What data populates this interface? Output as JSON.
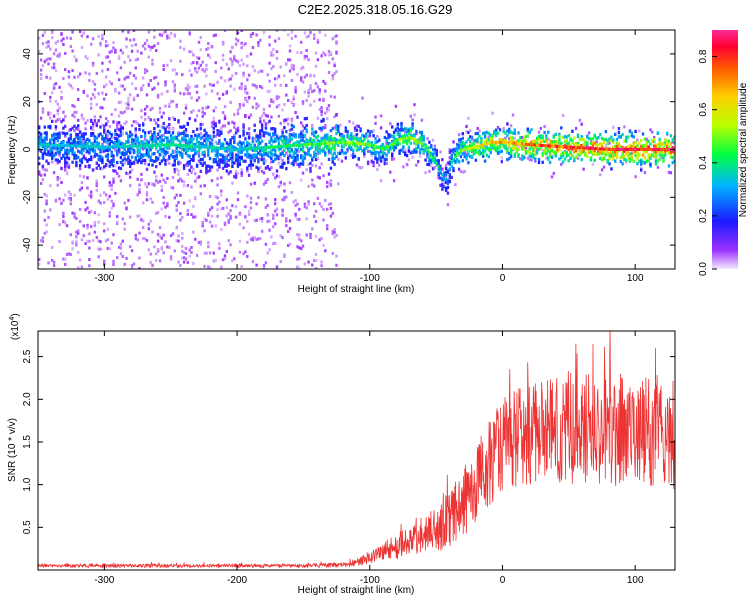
{
  "title": "C2E2.2025.318.05.16.G29",
  "chart_data": [
    {
      "type": "heatmap",
      "xlabel": "Height of straight line (km)",
      "ylabel": "Frequency (Hz)",
      "xlim": [
        -350,
        130
      ],
      "ylim": [
        -50,
        50
      ],
      "x_ticks": [
        -300,
        -200,
        -100,
        0,
        100
      ],
      "y_ticks": [
        -40,
        -20,
        0,
        20,
        40
      ],
      "x_tick_labels": [
        "-300",
        "-200",
        "-100",
        "0",
        "100"
      ],
      "y_tick_labels": [
        "-40",
        "-20",
        "0",
        "20",
        "40"
      ],
      "colorbar": {
        "label": "Normalized spectral amplitude",
        "range": [
          0,
          0.9
        ],
        "ticks": [
          0,
          0.2,
          0.4,
          0.6,
          0.8
        ],
        "tick_labels": [
          "0.0",
          "0.2",
          "0.4",
          "0.6",
          "0.8"
        ]
      },
      "ridge": {
        "x": [
          -350,
          -300,
          -250,
          -200,
          -150,
          -120,
          -100,
          -90,
          -80,
          -70,
          -60,
          -55,
          -50,
          -45,
          -42,
          -40,
          -35,
          -30,
          -20,
          -10,
          0,
          20,
          50,
          80,
          100,
          130
        ],
        "freq": [
          2,
          1,
          2,
          0,
          2,
          3,
          2,
          0,
          4,
          5,
          2,
          -2,
          -6,
          -12,
          -13,
          -6,
          -2,
          0,
          1,
          3,
          3,
          2,
          1,
          0,
          0,
          0
        ],
        "amplitude": [
          0.35,
          0.35,
          0.4,
          0.35,
          0.45,
          0.5,
          0.5,
          0.45,
          0.5,
          0.55,
          0.5,
          0.45,
          0.4,
          0.35,
          0.3,
          0.35,
          0.45,
          0.5,
          0.6,
          0.65,
          0.7,
          0.75,
          0.8,
          0.85,
          0.85,
          0.85
        ]
      }
    },
    {
      "type": "line",
      "xlabel": "Height of straight line (km)",
      "ylabel": "SNR (10 * v/v)",
      "y_multiplier": "(x10^4)",
      "multiplier_base": "(x10",
      "multiplier_exp": "4",
      "multiplier_close": ")",
      "xlim": [
        -350,
        130
      ],
      "ylim": [
        0,
        28000
      ],
      "x_ticks": [
        -300,
        -200,
        -100,
        0,
        100
      ],
      "y_ticks": [
        5000,
        10000,
        15000,
        20000,
        25000
      ],
      "x_tick_labels": [
        "-300",
        "-200",
        "-100",
        "0",
        "100"
      ],
      "y_tick_labels": [
        "0.5",
        "1.0",
        "1.5",
        "2.0",
        "2.5"
      ],
      "color": "#ee3333",
      "series": [
        {
          "name": "SNR",
          "x": [
            -350,
            -300,
            -250,
            -200,
            -150,
            -120,
            -110,
            -100,
            -90,
            -80,
            -70,
            -60,
            -50,
            -40,
            -30,
            -20,
            -10,
            0,
            10,
            20,
            30,
            40,
            50,
            60,
            70,
            80,
            90,
            100,
            110,
            120,
            130
          ],
          "mean": [
            500,
            500,
            500,
            500,
            500,
            600,
            900,
            1500,
            2200,
            2800,
            3200,
            3800,
            4800,
            6000,
            7800,
            10000,
            12500,
            14500,
            15500,
            16000,
            16500,
            16500,
            16800,
            16500,
            16500,
            16200,
            16500,
            16000,
            16200,
            16000,
            15800
          ],
          "spread": [
            200,
            200,
            200,
            200,
            200,
            250,
            400,
            700,
            1000,
            1400,
            1600,
            2000,
            2500,
            3000,
            3600,
            4200,
            4600,
            5000,
            5200,
            5500,
            5800,
            6000,
            6000,
            6000,
            6000,
            6000,
            6000,
            5800,
            5800,
            5800,
            5800
          ]
        }
      ]
    }
  ]
}
